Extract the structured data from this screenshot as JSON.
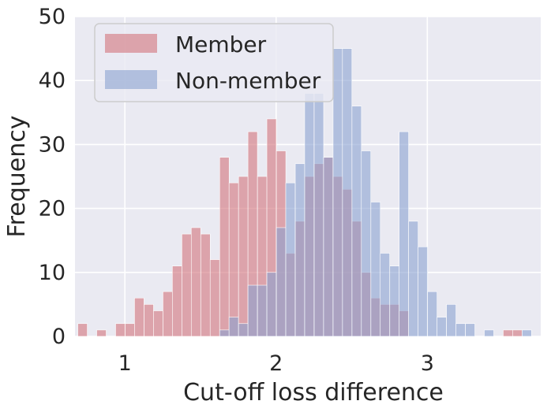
{
  "chart_data": {
    "type": "histogram",
    "title": "",
    "xlabel": "Cut-off loss difference",
    "ylabel": "Frequency",
    "xlim": [
      0.67,
      3.75
    ],
    "ylim": [
      0,
      50
    ],
    "x_ticks": [
      1,
      2,
      3
    ],
    "x_tick_labels": [
      "1",
      "2",
      "3"
    ],
    "y_ticks": [
      0,
      10,
      20,
      30,
      40,
      50
    ],
    "y_tick_labels": [
      "0",
      "10",
      "20",
      "30",
      "40",
      "50"
    ],
    "grid": true,
    "legend_position": "top-left",
    "bin_width": 0.0625,
    "series": [
      {
        "name": "Member",
        "color": "#dd8452",
        "fill": "#d2737c",
        "bins": [
          {
            "x": 0.72,
            "value": 2
          },
          {
            "x": 0.845,
            "value": 1
          },
          {
            "x": 0.97,
            "value": 2
          },
          {
            "x": 1.033,
            "value": 2
          },
          {
            "x": 1.095,
            "value": 6
          },
          {
            "x": 1.158,
            "value": 5
          },
          {
            "x": 1.22,
            "value": 4
          },
          {
            "x": 1.283,
            "value": 7
          },
          {
            "x": 1.345,
            "value": 11
          },
          {
            "x": 1.408,
            "value": 16
          },
          {
            "x": 1.47,
            "value": 17
          },
          {
            "x": 1.533,
            "value": 16
          },
          {
            "x": 1.595,
            "value": 12
          },
          {
            "x": 1.658,
            "value": 28
          },
          {
            "x": 1.72,
            "value": 24
          },
          {
            "x": 1.783,
            "value": 25
          },
          {
            "x": 1.845,
            "value": 32
          },
          {
            "x": 1.908,
            "value": 25
          },
          {
            "x": 1.97,
            "value": 34
          },
          {
            "x": 2.033,
            "value": 29
          },
          {
            "x": 2.095,
            "value": 13
          },
          {
            "x": 2.158,
            "value": 18
          },
          {
            "x": 2.22,
            "value": 25
          },
          {
            "x": 2.283,
            "value": 27
          },
          {
            "x": 2.345,
            "value": 28
          },
          {
            "x": 2.408,
            "value": 25
          },
          {
            "x": 2.47,
            "value": 23
          },
          {
            "x": 2.533,
            "value": 18
          },
          {
            "x": 2.595,
            "value": 10
          },
          {
            "x": 2.658,
            "value": 6
          },
          {
            "x": 2.72,
            "value": 5
          },
          {
            "x": 2.783,
            "value": 5
          },
          {
            "x": 2.845,
            "value": 4
          },
          {
            "x": 3.533,
            "value": 1
          },
          {
            "x": 3.595,
            "value": 1
          }
        ]
      },
      {
        "name": "Non-member",
        "color": "#4c72b0",
        "fill": "#8aa1d1",
        "bins": [
          {
            "x": 1.658,
            "value": 1
          },
          {
            "x": 1.72,
            "value": 3
          },
          {
            "x": 1.783,
            "value": 2
          },
          {
            "x": 1.845,
            "value": 8
          },
          {
            "x": 1.908,
            "value": 8
          },
          {
            "x": 1.97,
            "value": 10
          },
          {
            "x": 2.033,
            "value": 17
          },
          {
            "x": 2.095,
            "value": 24
          },
          {
            "x": 2.158,
            "value": 27
          },
          {
            "x": 2.22,
            "value": 38
          },
          {
            "x": 2.283,
            "value": 38
          },
          {
            "x": 2.345,
            "value": 28
          },
          {
            "x": 2.408,
            "value": 45
          },
          {
            "x": 2.47,
            "value": 45
          },
          {
            "x": 2.533,
            "value": 36
          },
          {
            "x": 2.595,
            "value": 29
          },
          {
            "x": 2.658,
            "value": 21
          },
          {
            "x": 2.72,
            "value": 13
          },
          {
            "x": 2.783,
            "value": 11
          },
          {
            "x": 2.845,
            "value": 32
          },
          {
            "x": 2.908,
            "value": 18
          },
          {
            "x": 2.97,
            "value": 14
          },
          {
            "x": 3.033,
            "value": 7
          },
          {
            "x": 3.095,
            "value": 3
          },
          {
            "x": 3.158,
            "value": 5
          },
          {
            "x": 3.22,
            "value": 2
          },
          {
            "x": 3.283,
            "value": 2
          },
          {
            "x": 3.408,
            "value": 1
          },
          {
            "x": 3.658,
            "value": 1
          }
        ]
      }
    ]
  }
}
